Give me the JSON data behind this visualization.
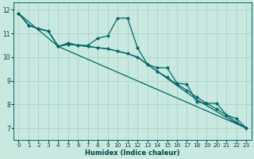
{
  "xlabel": "Humidex (Indice chaleur)",
  "bg_color": "#c8e8e0",
  "grid_color": "#a8d4cc",
  "line_color": "#006868",
  "xlim": [
    -0.5,
    23.5
  ],
  "ylim": [
    6.5,
    12.3
  ],
  "xticks": [
    0,
    1,
    2,
    3,
    4,
    5,
    6,
    7,
    8,
    9,
    10,
    11,
    12,
    13,
    14,
    15,
    16,
    17,
    18,
    19,
    20,
    21,
    22,
    23
  ],
  "yticks": [
    7,
    8,
    9,
    10,
    11,
    12
  ],
  "line1_x": [
    0,
    1,
    2,
    3,
    4,
    5,
    6,
    7,
    8,
    9,
    10,
    11,
    12,
    13,
    14,
    15,
    16,
    17,
    18,
    19,
    20,
    21,
    22,
    23
  ],
  "line1_y": [
    11.85,
    11.35,
    11.2,
    11.1,
    10.45,
    10.6,
    10.5,
    10.5,
    10.8,
    10.9,
    11.65,
    11.65,
    10.4,
    9.7,
    9.55,
    9.55,
    8.9,
    8.85,
    8.1,
    8.05,
    8.05,
    7.55,
    7.4,
    7.0
  ],
  "line2_x": [
    0,
    1,
    2,
    3,
    4,
    5,
    6,
    7,
    8,
    9,
    10,
    11,
    12,
    13,
    14,
    15,
    16,
    17,
    18,
    19,
    20,
    21,
    22,
    23
  ],
  "line2_y": [
    11.85,
    11.35,
    11.2,
    11.1,
    10.45,
    10.55,
    10.5,
    10.45,
    10.4,
    10.35,
    10.25,
    10.15,
    10.0,
    9.7,
    9.4,
    9.15,
    8.85,
    8.6,
    8.3,
    8.05,
    7.8,
    7.55,
    7.25,
    7.0
  ],
  "line3_x": [
    0,
    1,
    2,
    3,
    4,
    5,
    6,
    7,
    8,
    9,
    10,
    11,
    12,
    13,
    14,
    15,
    16,
    17,
    18,
    19,
    20,
    21,
    22,
    23
  ],
  "line3_y": [
    11.85,
    11.35,
    11.2,
    11.1,
    10.45,
    10.55,
    10.5,
    10.45,
    10.4,
    10.35,
    10.25,
    10.15,
    10.0,
    9.7,
    9.4,
    9.1,
    8.8,
    8.5,
    8.2,
    7.95,
    7.7,
    7.45,
    7.2,
    7.0
  ],
  "line4_x": [
    0,
    4,
    23
  ],
  "line4_y": [
    11.85,
    10.45,
    7.0
  ]
}
